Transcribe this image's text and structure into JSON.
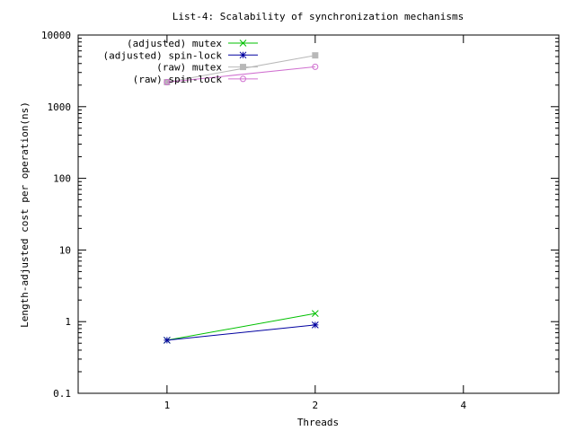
{
  "chart_data": {
    "type": "line",
    "title": "List-4: Scalability of synchronization mechanisms",
    "xlabel": "Threads",
    "ylabel": "Length-adjusted cost per operation(ns)",
    "x_scale": "log2",
    "y_scale": "log10",
    "xlim": [
      0.66,
      6.25
    ],
    "ylim": [
      0.1,
      10000
    ],
    "x_ticks": [
      1,
      2,
      4
    ],
    "x_tick_labels": [
      "1",
      "2",
      "4"
    ],
    "y_ticks": [
      0.1,
      1,
      10,
      100,
      1000,
      10000
    ],
    "y_tick_labels": [
      "0.1",
      "1",
      "10",
      "100",
      "1000",
      "10000"
    ],
    "grid": false,
    "legend_position": "top-left",
    "series": [
      {
        "name": "(adjusted) mutex",
        "x": [
          1,
          2
        ],
        "y": [
          0.55,
          1.3
        ],
        "color": "#00c000",
        "marker": "cross"
      },
      {
        "name": "(adjusted) spin-lock",
        "x": [
          1,
          2
        ],
        "y": [
          0.55,
          0.9
        ],
        "color": "#0000a0",
        "marker": "star"
      },
      {
        "name": "(raw) mutex",
        "x": [
          1,
          2
        ],
        "y": [
          2200,
          5200
        ],
        "color": "#b8b8b8",
        "marker": "square"
      },
      {
        "name": "(raw) spin-lock",
        "x": [
          1,
          2
        ],
        "y": [
          2200,
          3600
        ],
        "color": "#d070d0",
        "marker": "circle"
      }
    ]
  }
}
